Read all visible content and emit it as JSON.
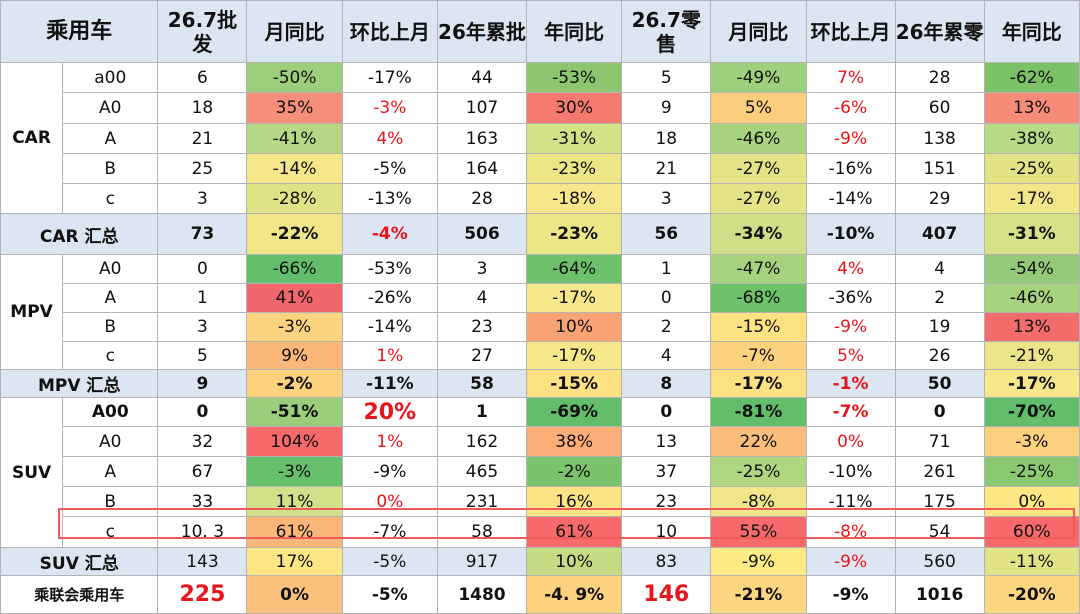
{
  "headers": [
    "乘用车",
    "26.7批发",
    "月同比",
    "环比上月",
    "26年累批",
    "年同比",
    "26.7零售",
    "月同比",
    "环比上月",
    "26年累零",
    "年同比"
  ],
  "colors": {
    "header_bg": "#dce6f2",
    "red_text": "#e8151b",
    "highlight_border": "#ef5a5a"
  },
  "groups": [
    {
      "category": "CAR",
      "rows": [
        {
          "segment": "a00",
          "cells": [
            {
              "v": "6"
            },
            {
              "v": "-50%",
              "bg": "#9dce7c"
            },
            {
              "v": "-17%"
            },
            {
              "v": "44"
            },
            {
              "v": "-53%",
              "bg": "#8cc770"
            },
            {
              "v": "5"
            },
            {
              "v": "-49%",
              "bg": "#9fd07d"
            },
            {
              "v": "7%",
              "red": true
            },
            {
              "v": "28"
            },
            {
              "v": "-62%",
              "bg": "#7bc267"
            }
          ]
        },
        {
          "segment": "A0",
          "cells": [
            {
              "v": "18"
            },
            {
              "v": "35%",
              "bg": "#f58e7b"
            },
            {
              "v": "-3%",
              "red": true
            },
            {
              "v": "107"
            },
            {
              "v": "30%",
              "bg": "#f47a6f"
            },
            {
              "v": "9"
            },
            {
              "v": "5%",
              "bg": "#fbcd7c"
            },
            {
              "v": "-6%",
              "red": true
            },
            {
              "v": "60"
            },
            {
              "v": "13%",
              "bg": "#f68b78"
            }
          ]
        },
        {
          "segment": "A",
          "cells": [
            {
              "v": "21"
            },
            {
              "v": "-41%",
              "bg": "#b6d886"
            },
            {
              "v": "4%",
              "red": true
            },
            {
              "v": "163"
            },
            {
              "v": "-31%",
              "bg": "#d3e189"
            },
            {
              "v": "18"
            },
            {
              "v": "-46%",
              "bg": "#a9d37f"
            },
            {
              "v": "-9%",
              "red": true
            },
            {
              "v": "138"
            },
            {
              "v": "-38%",
              "bg": "#b8d985"
            }
          ]
        },
        {
          "segment": "B",
          "cells": [
            {
              "v": "25"
            },
            {
              "v": "-14%",
              "bg": "#f6e88a"
            },
            {
              "v": "-5%"
            },
            {
              "v": "164"
            },
            {
              "v": "-23%",
              "bg": "#ede686"
            },
            {
              "v": "21"
            },
            {
              "v": "-27%",
              "bg": "#e4e387"
            },
            {
              "v": "-16%"
            },
            {
              "v": "151"
            },
            {
              "v": "-25%",
              "bg": "#e3e386"
            }
          ]
        },
        {
          "segment": "c",
          "cells": [
            {
              "v": "3"
            },
            {
              "v": "-28%",
              "bg": "#e0e287"
            },
            {
              "v": "-13%"
            },
            {
              "v": "28"
            },
            {
              "v": "-18%",
              "bg": "#f6e88a"
            },
            {
              "v": "3"
            },
            {
              "v": "-27%",
              "bg": "#e4e387"
            },
            {
              "v": "-14%"
            },
            {
              "v": "29"
            },
            {
              "v": "-17%",
              "bg": "#f1e688"
            }
          ]
        }
      ],
      "summary": {
        "label": "CAR 汇总",
        "cells": [
          {
            "v": "73"
          },
          {
            "v": "-22%",
            "bg": "#f0e688"
          },
          {
            "v": "-4%",
            "red": true
          },
          {
            "v": "506"
          },
          {
            "v": "-23%",
            "bg": "#ede686"
          },
          {
            "v": "56"
          },
          {
            "v": "-34%",
            "bg": "#d0df87"
          },
          {
            "v": "-10%"
          },
          {
            "v": "407"
          },
          {
            "v": "-31%",
            "bg": "#d6e188"
          }
        ]
      }
    },
    {
      "category": "MPV",
      "rows": [
        {
          "segment": "A0",
          "cells": [
            {
              "v": "0"
            },
            {
              "v": "-66%",
              "bg": "#63be6b"
            },
            {
              "v": "-53%"
            },
            {
              "v": "3"
            },
            {
              "v": "-64%",
              "bg": "#6cc16a"
            },
            {
              "v": "1"
            },
            {
              "v": "-47%",
              "bg": "#a6d27e"
            },
            {
              "v": "4%",
              "red": true
            },
            {
              "v": "4"
            },
            {
              "v": "-54%",
              "bg": "#93ca77"
            }
          ]
        },
        {
          "segment": "A",
          "cells": [
            {
              "v": "1"
            },
            {
              "v": "41%",
              "bg": "#f1666b"
            },
            {
              "v": "-26%"
            },
            {
              "v": "4"
            },
            {
              "v": "-17%",
              "bg": "#f6e88a"
            },
            {
              "v": "0"
            },
            {
              "v": "-68%",
              "bg": "#6dc26a"
            },
            {
              "v": "-36%"
            },
            {
              "v": "2"
            },
            {
              "v": "-46%",
              "bg": "#a7d37e"
            }
          ]
        },
        {
          "segment": "B",
          "cells": [
            {
              "v": "3"
            },
            {
              "v": "-3%",
              "bg": "#fcd47f"
            },
            {
              "v": "-14%"
            },
            {
              "v": "23"
            },
            {
              "v": "10%",
              "bg": "#f9a274"
            },
            {
              "v": "2"
            },
            {
              "v": "-15%",
              "bg": "#fee282"
            },
            {
              "v": "-9%",
              "red": true
            },
            {
              "v": "19"
            },
            {
              "v": "13%",
              "bg": "#f26c6c"
            }
          ]
        },
        {
          "segment": "c",
          "cells": [
            {
              "v": "5"
            },
            {
              "v": "9%",
              "bg": "#fbb679"
            },
            {
              "v": "1%",
              "red": true
            },
            {
              "v": "27"
            },
            {
              "v": "-17%",
              "bg": "#f6e88a"
            },
            {
              "v": "4"
            },
            {
              "v": "-7%",
              "bg": "#fcd27f"
            },
            {
              "v": "5%",
              "red": true
            },
            {
              "v": "26"
            },
            {
              "v": "-21%",
              "bg": "#ebe587"
            }
          ]
        }
      ],
      "summary": {
        "label": "MPV 汇总",
        "cells": [
          {
            "v": "9"
          },
          {
            "v": "-2%",
            "bg": "#fcd27f"
          },
          {
            "v": "-11%"
          },
          {
            "v": "58"
          },
          {
            "v": "-15%",
            "bg": "#fde182"
          },
          {
            "v": "8"
          },
          {
            "v": "-17%",
            "bg": "#fde182"
          },
          {
            "v": "-1%",
            "red": true
          },
          {
            "v": "50"
          },
          {
            "v": "-17%",
            "bg": "#f6e88a"
          }
        ]
      }
    },
    {
      "category": "SUV",
      "rows": [
        {
          "segment": "A00",
          "bold": true,
          "cells": [
            {
              "v": "0"
            },
            {
              "v": "-51%",
              "bg": "#9bcd7b"
            },
            {
              "v": "20%",
              "red": true,
              "big": true
            },
            {
              "v": "1"
            },
            {
              "v": "-69%",
              "bg": "#63be6b"
            },
            {
              "v": "0"
            },
            {
              "v": "-81%",
              "bg": "#63be6b"
            },
            {
              "v": "-7%",
              "red": true
            },
            {
              "v": "0"
            },
            {
              "v": "-70%",
              "bg": "#63be6b"
            }
          ]
        },
        {
          "segment": "A0",
          "cells": [
            {
              "v": "32"
            },
            {
              "v": "104%",
              "bg": "#f8696b"
            },
            {
              "v": "1%",
              "red": true
            },
            {
              "v": "162"
            },
            {
              "v": "38%",
              "bg": "#fbad78"
            },
            {
              "v": "13"
            },
            {
              "v": "22%",
              "bg": "#fbbd7b"
            },
            {
              "v": "0%",
              "red": true
            },
            {
              "v": "71"
            },
            {
              "v": "-3%",
              "bg": "#fbd07e"
            }
          ]
        },
        {
          "segment": "A",
          "cells": [
            {
              "v": "67"
            },
            {
              "v": "-3%",
              "bg": "#66bf6a"
            },
            {
              "v": "-9%"
            },
            {
              "v": "465"
            },
            {
              "v": "-2%",
              "bg": "#7cc36e"
            },
            {
              "v": "37"
            },
            {
              "v": "-25%",
              "bg": "#b0d681"
            },
            {
              "v": "-10%"
            },
            {
              "v": "261"
            },
            {
              "v": "-25%",
              "bg": "#8bc872"
            }
          ]
        },
        {
          "segment": "B",
          "cells": [
            {
              "v": "33"
            },
            {
              "v": "11%",
              "bg": "#d3e08a"
            },
            {
              "v": "0%",
              "red": true
            },
            {
              "v": "231"
            },
            {
              "v": "16%",
              "bg": "#fde383"
            },
            {
              "v": "23"
            },
            {
              "v": "-8%",
              "bg": "#f0e689"
            },
            {
              "v": "-11%"
            },
            {
              "v": "175"
            },
            {
              "v": "0%",
              "bg": "#fee683"
            }
          ]
        },
        {
          "segment": "c",
          "cells": [
            {
              "v": "10. 3"
            },
            {
              "v": "61%",
              "bg": "#fbb779"
            },
            {
              "v": "-7%"
            },
            {
              "v": "58"
            },
            {
              "v": "61%",
              "bg": "#f8696b"
            },
            {
              "v": "10"
            },
            {
              "v": "55%",
              "bg": "#f8696b"
            },
            {
              "v": "-8%",
              "red": true
            },
            {
              "v": "54"
            },
            {
              "v": "60%",
              "bg": "#f8696b"
            }
          ]
        }
      ],
      "summary": {
        "label": "SUV 汇总",
        "normal": true,
        "cells": [
          {
            "v": "143"
          },
          {
            "v": "17%",
            "bg": "#fde683"
          },
          {
            "v": "-5%"
          },
          {
            "v": "917"
          },
          {
            "v": "10%",
            "bg": "#c5dc84"
          },
          {
            "v": "83"
          },
          {
            "v": "-9%",
            "bg": "#feea84"
          },
          {
            "v": "-9%",
            "red": true
          },
          {
            "v": "560"
          },
          {
            "v": "-11%",
            "bg": "#e2e286"
          }
        ]
      }
    }
  ],
  "total": {
    "label": "乘联会乘用车",
    "cells": [
      {
        "v": "225",
        "red": true,
        "big": true
      },
      {
        "v": "0%",
        "bg": "#fbc17c"
      },
      {
        "v": "-5%"
      },
      {
        "v": "1480"
      },
      {
        "v": "-4. 9%",
        "bg": "#fcd27f"
      },
      {
        "v": "146",
        "red": true,
        "big": true
      },
      {
        "v": "-21%",
        "bg": "#fcd680"
      },
      {
        "v": "-9%"
      },
      {
        "v": "1016"
      },
      {
        "v": "-20%",
        "bg": "#fcd680"
      }
    ]
  }
}
